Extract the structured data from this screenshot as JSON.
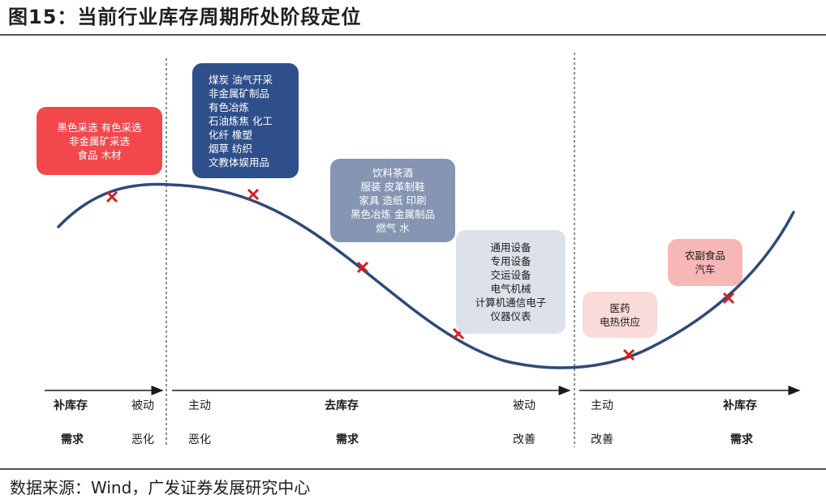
{
  "title": "图15：当前行业库存周期所处阶段定位",
  "source": "数据来源：Wind，广发证券发展研究中心",
  "colors": {
    "curve": "#2e4a7a",
    "marker": "#d61f1f",
    "red_box": "#f2484b",
    "navy_box": "#2f4f8a",
    "slate_box": "#8595b2",
    "light_box": "#dde2ea",
    "pink_box_1": "#fbdada",
    "pink_box_2": "#f8b7b7"
  },
  "chart_data": {
    "type": "diagram",
    "curve": "inventory cycle",
    "boxes": [
      {
        "lines": [
          "黑色采选 有色采选",
          "非金属矿采选",
          "食品 木材"
        ]
      },
      {
        "lines": [
          "煤炭 油气开采",
          "非金属矿制品",
          "有色冶炼",
          "石油炼焦 化工",
          "化纤 橡塑",
          "烟草 纺织",
          "文教体娱用品"
        ]
      },
      {
        "lines": [
          "饮料茶酒",
          "服装 皮革制鞋",
          "家具 造纸 印刷",
          "黑色冶炼 金属制品",
          "燃气 水"
        ]
      },
      {
        "lines": [
          "通用设备",
          "专用设备",
          "交运设备",
          "电气机械",
          "计算机通信电子",
          "仪器仪表"
        ]
      },
      {
        "lines": [
          "医药",
          "电热供应"
        ]
      },
      {
        "lines": [
          "农副食品",
          "汽车"
        ]
      }
    ],
    "phases": {
      "p1": {
        "stage": "补库存",
        "mode": "被动",
        "demand": "需求",
        "demand_state": "恶化"
      },
      "p2": {
        "mode_left": "主动",
        "stage": "去库存",
        "mode_right": "被动",
        "demand_left": "恶化",
        "demand": "需求",
        "demand_right": "改善"
      },
      "p3": {
        "mode": "主动",
        "stage": "补库存",
        "demand_state": "改善",
        "demand": "需求"
      }
    }
  }
}
